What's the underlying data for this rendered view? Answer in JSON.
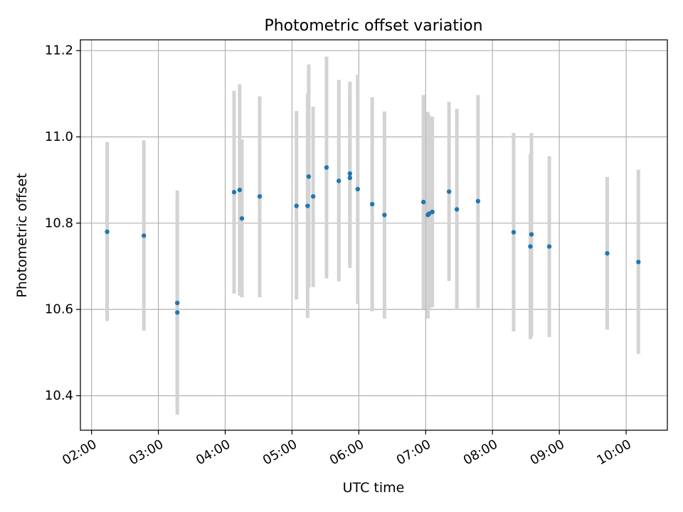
{
  "chart_data": {
    "type": "scatter",
    "title": "Photometric offset variation",
    "xlabel": "UTC time",
    "ylabel": "Photometric offset",
    "grid": true,
    "legend": "none",
    "xlim": [
      "01:50",
      "10:37"
    ],
    "ylim": [
      10.32,
      11.225
    ],
    "x_ticks": [
      "02:00",
      "03:00",
      "04:00",
      "05:00",
      "06:00",
      "07:00",
      "08:00",
      "09:00",
      "10:00"
    ],
    "y_ticks": [
      "10.4",
      "10.6",
      "10.8",
      "11.0",
      "11.2"
    ],
    "series": [
      {
        "marker_color": "#1f77b4",
        "errorbar_color": "#d3d3d3",
        "points": [
          {
            "x": "02:14",
            "y": 10.78,
            "ylow": 10.573,
            "yhigh": 10.988
          },
          {
            "x": "02:47",
            "y": 10.771,
            "ylow": 10.551,
            "yhigh": 10.992
          },
          {
            "x": "03:17",
            "y": 10.615,
            "ylow": 10.375,
            "yhigh": 10.855
          },
          {
            "x": "03:17",
            "y": 10.593,
            "ylow": 10.356,
            "yhigh": 10.876
          },
          {
            "x": "04:08",
            "y": 10.872,
            "ylow": 10.637,
            "yhigh": 11.107
          },
          {
            "x": "04:13",
            "y": 10.877,
            "ylow": 10.632,
            "yhigh": 11.122
          },
          {
            "x": "04:15",
            "y": 10.811,
            "ylow": 10.628,
            "yhigh": 10.994
          },
          {
            "x": "04:31",
            "y": 10.862,
            "ylow": 10.628,
            "yhigh": 11.094
          },
          {
            "x": "05:04",
            "y": 10.84,
            "ylow": 10.623,
            "yhigh": 11.06
          },
          {
            "x": "05:14",
            "y": 10.84,
            "ylow": 10.58,
            "yhigh": 11.1
          },
          {
            "x": "05:15",
            "y": 10.908,
            "ylow": 10.65,
            "yhigh": 11.168
          },
          {
            "x": "05:19",
            "y": 10.862,
            "ylow": 10.652,
            "yhigh": 11.07
          },
          {
            "x": "05:31",
            "y": 10.929,
            "ylow": 10.672,
            "yhigh": 11.186
          },
          {
            "x": "05:42",
            "y": 10.898,
            "ylow": 10.665,
            "yhigh": 11.132
          },
          {
            "x": "05:52",
            "y": 10.915,
            "ylow": 10.696,
            "yhigh": 11.128
          },
          {
            "x": "05:52",
            "y": 10.905,
            "ylow": 10.7,
            "yhigh": 11.11
          },
          {
            "x": "05:59",
            "y": 10.879,
            "ylow": 10.613,
            "yhigh": 11.144
          },
          {
            "x": "06:12",
            "y": 10.844,
            "ylow": 10.596,
            "yhigh": 11.092
          },
          {
            "x": "06:23",
            "y": 10.819,
            "ylow": 10.579,
            "yhigh": 11.059
          },
          {
            "x": "06:58",
            "y": 10.849,
            "ylow": 10.601,
            "yhigh": 11.097
          },
          {
            "x": "07:02",
            "y": 10.819,
            "ylow": 10.579,
            "yhigh": 11.058
          },
          {
            "x": "07:03",
            "y": 10.822,
            "ylow": 10.6,
            "yhigh": 11.05
          },
          {
            "x": "07:06",
            "y": 10.826,
            "ylow": 10.605,
            "yhigh": 11.047
          },
          {
            "x": "07:21",
            "y": 10.873,
            "ylow": 10.666,
            "yhigh": 11.081
          },
          {
            "x": "07:28",
            "y": 10.832,
            "ylow": 10.599,
            "yhigh": 11.065
          },
          {
            "x": "07:47",
            "y": 10.851,
            "ylow": 10.603,
            "yhigh": 11.097
          },
          {
            "x": "08:19",
            "y": 10.779,
            "ylow": 10.549,
            "yhigh": 11.009
          },
          {
            "x": "08:34",
            "y": 10.746,
            "ylow": 10.531,
            "yhigh": 10.96
          },
          {
            "x": "08:35",
            "y": 10.774,
            "ylow": 10.538,
            "yhigh": 11.009
          },
          {
            "x": "08:51",
            "y": 10.746,
            "ylow": 10.536,
            "yhigh": 10.955
          },
          {
            "x": "09:43",
            "y": 10.73,
            "ylow": 10.553,
            "yhigh": 10.907
          },
          {
            "x": "10:11",
            "y": 10.71,
            "ylow": 10.497,
            "yhigh": 10.924
          }
        ]
      }
    ]
  }
}
